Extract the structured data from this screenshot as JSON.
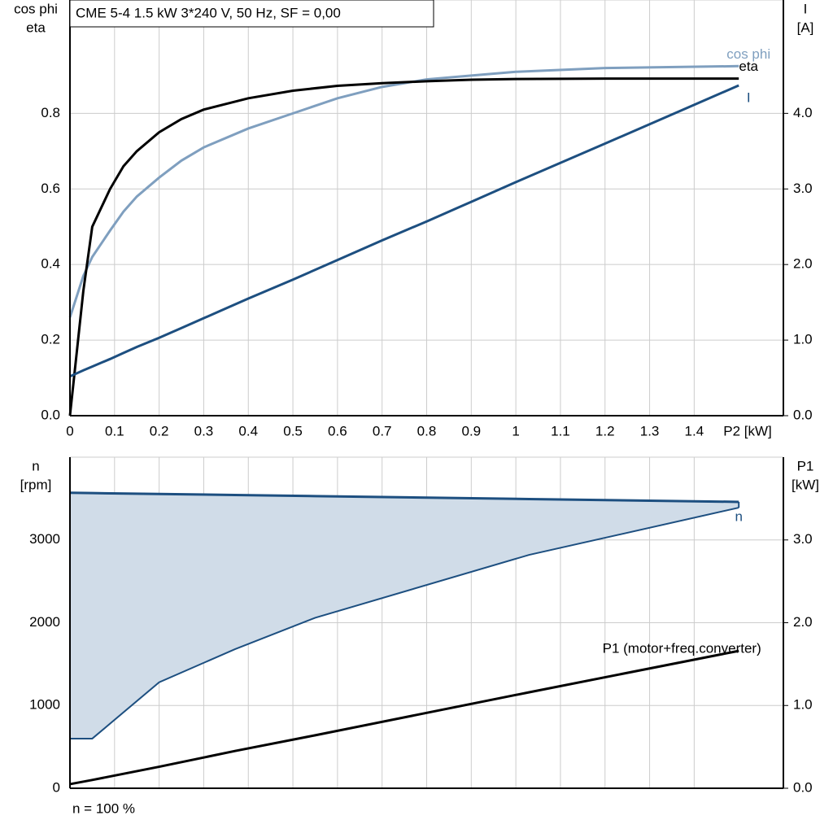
{
  "chart_data": [
    {
      "type": "line",
      "title": "CME 5-4   1.5 kW   3*240 V, 50 Hz, SF = 0,00",
      "ylabel": [
        "cos phi",
        "eta"
      ],
      "y2label": [
        "I",
        "[A]"
      ],
      "xlabel": "P2 [kW]",
      "x": [
        0,
        0.03,
        0.05,
        0.09,
        0.12,
        0.15,
        0.2,
        0.25,
        0.3,
        0.4,
        0.5,
        0.6,
        0.7,
        0.8,
        0.9,
        1.0,
        1.2,
        1.5
      ],
      "series": [
        {
          "name": "cos phi",
          "color": "#7f9fbf",
          "values": [
            0.26,
            0.37,
            0.42,
            0.49,
            0.54,
            0.58,
            0.63,
            0.675,
            0.71,
            0.76,
            0.8,
            0.84,
            0.87,
            0.89,
            0.9,
            0.91,
            0.92,
            0.925
          ]
        },
        {
          "name": "eta",
          "color": "#000000",
          "values": [
            0,
            0.33,
            0.5,
            0.6,
            0.66,
            0.7,
            0.75,
            0.785,
            0.81,
            0.84,
            0.86,
            0.873,
            0.88,
            0.885,
            0.889,
            0.891,
            0.892,
            0.892
          ]
        },
        {
          "name": "I",
          "color": "#1d4f80",
          "axis": "y2",
          "values": [
            0.52,
            0.6,
            0.65,
            0.75,
            0.83,
            0.91,
            1.03,
            1.16,
            1.29,
            1.55,
            1.8,
            2.06,
            2.32,
            2.57,
            2.83,
            3.09,
            3.6,
            4.37
          ]
        }
      ],
      "xlim": [
        0,
        1.6
      ],
      "xticks": [
        0,
        0.1,
        0.2,
        0.3,
        0.4,
        0.5,
        0.6,
        0.7,
        0.8,
        0.9,
        1.0,
        1.1,
        1.2,
        1.3,
        1.4
      ],
      "ylim": [
        0,
        1.1
      ],
      "yticks": [
        {
          "value": 0,
          "label": "0.0"
        },
        0.2,
        0.4,
        0.6,
        0.8
      ],
      "y2lim": [
        0,
        5.5
      ],
      "y2ticks": [
        {
          "value": 0,
          "label": "0.0"
        },
        {
          "value": 1,
          "label": "1.0"
        },
        {
          "value": 2,
          "label": "2.0"
        },
        {
          "value": 3,
          "label": "3.0"
        },
        {
          "value": 4,
          "label": "4.0"
        }
      ],
      "grid": true
    },
    {
      "type": "area",
      "ylabel": [
        "n",
        "[rpm]"
      ],
      "y2label": [
        "P1",
        "[kW]"
      ],
      "note": "n = 100 %",
      "x": [
        0,
        0.05,
        0.2,
        0.37,
        0.55,
        1.03,
        1.5
      ],
      "series": [
        {
          "name": "n",
          "color": "#1d4f80",
          "fill": "#d0dce8",
          "values": [
            3570,
            3566,
            3555,
            3543,
            3530,
            3494,
            3460
          ],
          "lower": [
            600,
            600,
            1280,
            1680,
            2060,
            2820,
            3390
          ]
        },
        {
          "name": "P1 (motor+freq.converter)",
          "color": "#000000",
          "axis": "y2",
          "values": [
            0.05,
            0.1,
            0.26,
            0.45,
            0.64,
            1.16,
            1.66
          ]
        }
      ],
      "xlim": [
        0,
        1.6
      ],
      "ylim": [
        0,
        4000
      ],
      "yticks": [
        0,
        1000,
        2000,
        3000
      ],
      "y2lim": [
        0,
        4
      ],
      "y2ticks": [
        {
          "value": 0,
          "label": "0.0"
        },
        {
          "value": 1,
          "label": "1.0"
        },
        {
          "value": 2,
          "label": "2.0"
        },
        {
          "value": 3,
          "label": "3.0"
        }
      ],
      "grid": true
    }
  ]
}
